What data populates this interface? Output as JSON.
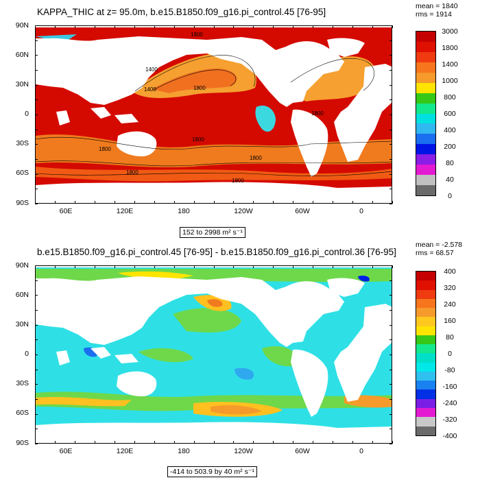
{
  "panels": [
    {
      "title": "KAPPA_THIC at z=  95.0m, b.e15.B1850.f09_g16.pi_control.45 [76-95]",
      "stat_mean": "mean = 1840",
      "stat_rms": "rms = 1914",
      "range_label": "152 to 2998 m² s⁻¹",
      "lat_labels": [
        "90N",
        "60N",
        "30N",
        "0",
        "30S",
        "60S",
        "90S"
      ],
      "lon_labels": [
        "60E",
        "120E",
        "180",
        "120W",
        "60W",
        "0"
      ],
      "colorbar_labels": [
        "3000",
        "1800",
        "1400",
        "1000",
        "800",
        "600",
        "400",
        "200",
        "80",
        "40",
        "0"
      ],
      "colorbar_colors": [
        "#c40000",
        "#e01000",
        "#f03a10",
        "#f7751c",
        "#f59a2b",
        "#ffe400",
        "#35c817",
        "#14e88c",
        "#00e0e0",
        "#30b8f0",
        "#1a6ef0",
        "#0014e6",
        "#8a1ee6",
        "#e41ad2",
        "#c0c0c0",
        "#6a6a6a"
      ],
      "contour_labels": [
        "1800",
        "1400",
        "1400",
        "1800",
        "1800",
        "1800",
        "1800",
        "1800",
        "1800",
        "1800"
      ]
    },
    {
      "title": "b.e15.B1850.f09_g16.pi_control.45 [76-95] - b.e15.B1850.f09_g16.pi_control.36 [76-95]",
      "stat_mean": "mean = -2.578",
      "stat_rms": "rms = 68.57",
      "range_label": "-414 to 503.9 by 40 m² s⁻¹",
      "lat_labels": [
        "90N",
        "60N",
        "30N",
        "0",
        "30S",
        "60S",
        "90S"
      ],
      "lon_labels": [
        "60E",
        "120E",
        "180",
        "120W",
        "60W",
        "0"
      ],
      "colorbar_labels": [
        "400",
        "320",
        "240",
        "160",
        "80",
        "0",
        "-80",
        "-160",
        "-240",
        "-320",
        "-400"
      ],
      "colorbar_colors": [
        "#c40000",
        "#e01000",
        "#f03a10",
        "#f7751c",
        "#f59a2b",
        "#ffc81e",
        "#ffe400",
        "#35c817",
        "#14e88c",
        "#00e0c8",
        "#00e8e8",
        "#30c0f0",
        "#1a82f0",
        "#0030e6",
        "#7a1ee6",
        "#e41ad2",
        "#c8c8c8",
        "#6a6a6a"
      ]
    }
  ]
}
